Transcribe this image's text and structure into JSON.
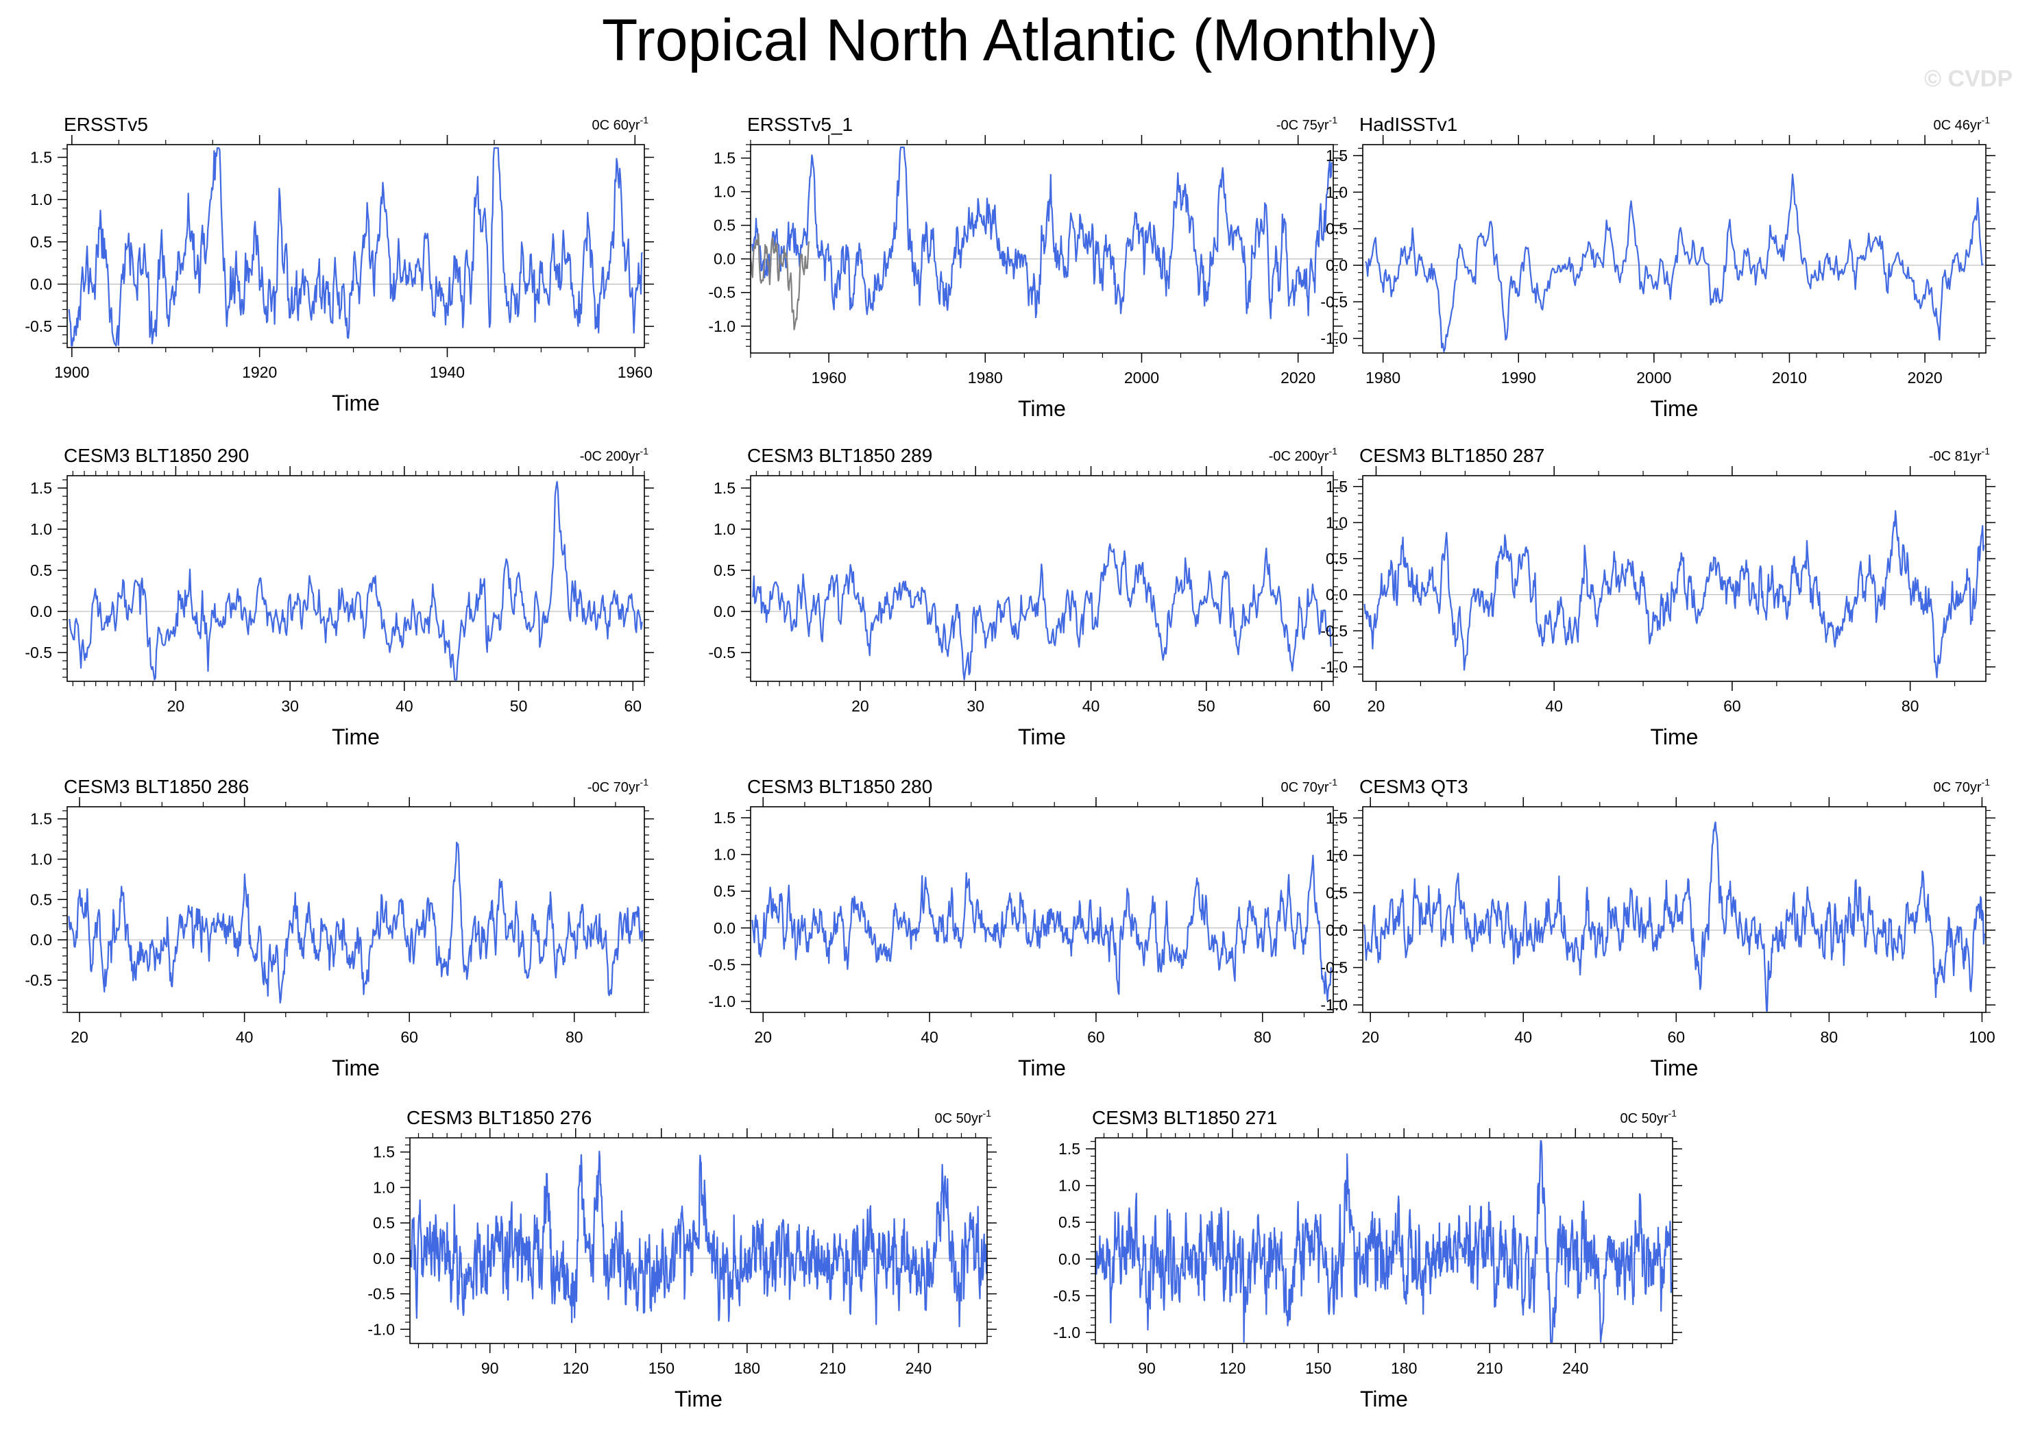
{
  "figure": {
    "title": "Tropical North Atlantic (Monthly)",
    "watermark": "© CVDP",
    "line_color": "#4169e1",
    "secondary_line_color": "#808080",
    "zero_line_color": "#b0b0b0"
  },
  "chart_data": [
    {
      "type": "line",
      "title": "ERSSTv5",
      "annotation": "0C 60yr",
      "annotation_sup": "-1",
      "xlabel": "Time",
      "xlim": [
        1899.5,
        1961
      ],
      "xticks": [
        1900,
        1920,
        1940,
        1960
      ],
      "xminor": 5,
      "ylim": [
        -0.75,
        1.65
      ],
      "yticks": [
        -0.5,
        0.0,
        0.5,
        1.0,
        1.5
      ],
      "grid": false,
      "series": [
        {
          "name": "ERSSTv5",
          "n": 732,
          "seed": 11,
          "amp": 0.34,
          "mean": 0.02,
          "events": [
            [
              1903.0,
              0.65
            ],
            [
              1915.7,
              0.75
            ],
            [
              1931.5,
              0.6
            ],
            [
              1941.0,
              0.55
            ],
            [
              1944.0,
              0.6
            ],
            [
              1945.3,
              1.25
            ],
            [
              1958.2,
              0.75
            ],
            [
              1904.5,
              -0.55
            ],
            [
              1923.5,
              -0.5
            ],
            [
              1952.0,
              -0.45
            ],
            [
              1956.0,
              -0.5
            ]
          ]
        }
      ]
    },
    {
      "type": "line",
      "title": "ERSSTv5_1",
      "annotation": "-0C 75yr",
      "annotation_sup": "-1",
      "xlabel": "Time",
      "xlim": [
        1950,
        2024.5
      ],
      "xticks": [
        1960,
        1980,
        2000,
        2020
      ],
      "xminor": 5,
      "ylim": [
        -1.4,
        1.7
      ],
      "yticks": [
        -1.0,
        -0.5,
        0.0,
        0.5,
        1.0,
        1.5
      ],
      "grid": false,
      "series": [
        {
          "name": "ERSSTv5_1",
          "n": 894,
          "seed": 23,
          "amp": 0.32,
          "mean": 0.0,
          "events": [
            [
              1958.0,
              0.85
            ],
            [
              1969.5,
              0.9
            ],
            [
              1974.0,
              -1.0
            ],
            [
              1988.0,
              0.65
            ],
            [
              2005.5,
              0.75
            ],
            [
              2010.2,
              1.05
            ],
            [
              2019.0,
              -0.9
            ],
            [
              2024.0,
              0.95
            ]
          ]
        },
        {
          "name": "ERSSTv5_1 (alt)",
          "n": 90,
          "seed": 29,
          "amp": 0.28,
          "mean": -0.08,
          "xrange": [
            1950,
            1957.5
          ],
          "color": "secondary",
          "events": []
        }
      ]
    },
    {
      "type": "line",
      "title": "HadISSTv1",
      "annotation": "0C 46yr",
      "annotation_sup": "-1",
      "xlabel": "Time",
      "xlim": [
        1978.5,
        2024.5
      ],
      "xticks": [
        1980,
        1990,
        2000,
        2010,
        2020
      ],
      "xminor": 2,
      "ylim": [
        -1.2,
        1.65
      ],
      "yticks": [
        -1.0,
        -0.5,
        0.0,
        0.5,
        1.0,
        1.5
      ],
      "grid": false,
      "series": [
        {
          "name": "HadISSTv1",
          "n": 552,
          "seed": 37,
          "amp": 0.22,
          "mean": 0.0,
          "events": [
            [
              1979.5,
              0.35
            ],
            [
              1988.0,
              0.45
            ],
            [
              1998.3,
              0.7
            ],
            [
              2005.5,
              0.6
            ],
            [
              2010.2,
              1.05
            ],
            [
              1984.5,
              -0.55
            ],
            [
              1989.0,
              -0.75
            ],
            [
              2021.0,
              -0.9
            ],
            [
              2023.8,
              0.8
            ]
          ]
        }
      ]
    },
    {
      "type": "line",
      "title": "CESM3 BLT1850 290",
      "annotation": "-0C 200yr",
      "annotation_sup": "-1",
      "xlabel": "Time",
      "xlim": [
        10.5,
        61
      ],
      "xticks": [
        20,
        30,
        40,
        50,
        60
      ],
      "xminor": 1,
      "ylim": [
        -0.85,
        1.65
      ],
      "yticks": [
        -0.5,
        0.0,
        0.5,
        1.0,
        1.5
      ],
      "grid": false,
      "series": [
        {
          "name": "290",
          "n": 600,
          "seed": 41,
          "amp": 0.25,
          "mean": 0.0,
          "events": [
            [
              53.3,
              1.15
            ],
            [
              54.0,
              0.6
            ],
            [
              24.5,
              0.4
            ],
            [
              51.5,
              0.45
            ],
            [
              44.5,
              -0.55
            ],
            [
              18.0,
              -0.5
            ],
            [
              47.5,
              -0.5
            ]
          ]
        }
      ]
    },
    {
      "type": "line",
      "title": "CESM3 BLT1850 289",
      "annotation": "-0C 200yr",
      "annotation_sup": "-1",
      "xlabel": "Time",
      "xlim": [
        10.5,
        61
      ],
      "xticks": [
        20,
        30,
        40,
        50,
        60
      ],
      "xminor": 1,
      "ylim": [
        -0.85,
        1.65
      ],
      "yticks": [
        -0.5,
        0.0,
        0.5,
        1.0,
        1.5
      ],
      "grid": false,
      "series": [
        {
          "name": "289",
          "n": 600,
          "seed": 53,
          "amp": 0.24,
          "mean": 0.0,
          "events": [
            [
              44.3,
              0.7
            ],
            [
              28.5,
              0.5
            ],
            [
              59.0,
              0.5
            ],
            [
              42.0,
              0.45
            ],
            [
              29.5,
              -0.5
            ],
            [
              57.5,
              -0.5
            ]
          ]
        }
      ]
    },
    {
      "type": "line",
      "title": "CESM3 BLT1850 287",
      "annotation": "-0C 81yr",
      "annotation_sup": "-1",
      "xlabel": "Time",
      "xlim": [
        18.5,
        88.5
      ],
      "xticks": [
        20,
        40,
        60,
        80
      ],
      "xminor": 5,
      "ylim": [
        -1.2,
        1.65
      ],
      "yticks": [
        -1.0,
        -0.5,
        0.0,
        0.5,
        1.0,
        1.5
      ],
      "grid": false,
      "series": [
        {
          "name": "287",
          "n": 840,
          "seed": 67,
          "amp": 0.26,
          "mean": 0.0,
          "events": [
            [
              27.8,
              0.8
            ],
            [
              61.5,
              0.8
            ],
            [
              78.3,
              0.85
            ],
            [
              88.0,
              0.65
            ],
            [
              34.5,
              0.5
            ],
            [
              83.0,
              -0.85
            ],
            [
              30.0,
              -0.5
            ],
            [
              45.0,
              -0.5
            ]
          ]
        }
      ]
    },
    {
      "type": "line",
      "title": "CESM3 BLT1850 286",
      "annotation": "-0C 70yr",
      "annotation_sup": "-1",
      "xlabel": "Time",
      "xlim": [
        18.5,
        88.5
      ],
      "xticks": [
        20,
        40,
        60,
        80
      ],
      "xminor": 5,
      "ylim": [
        -0.9,
        1.65
      ],
      "yticks": [
        -0.5,
        0.0,
        0.5,
        1.0,
        1.5
      ],
      "grid": false,
      "series": [
        {
          "name": "286",
          "n": 840,
          "seed": 79,
          "amp": 0.26,
          "mean": 0.0,
          "events": [
            [
              40.0,
              1.0
            ],
            [
              65.8,
              0.95
            ],
            [
              23.0,
              -0.55
            ],
            [
              44.5,
              -0.55
            ],
            [
              55.0,
              -0.4
            ],
            [
              71.0,
              0.5
            ]
          ]
        }
      ]
    },
    {
      "type": "line",
      "title": "CESM3 BLT1850 280",
      "annotation": "0C 70yr",
      "annotation_sup": "-1",
      "xlabel": "Time",
      "xlim": [
        18.5,
        88.5
      ],
      "xticks": [
        20,
        40,
        60,
        80
      ],
      "xminor": 5,
      "ylim": [
        -1.15,
        1.65
      ],
      "yticks": [
        -1.0,
        -0.5,
        0.0,
        0.5,
        1.0,
        1.5
      ],
      "grid": false,
      "series": [
        {
          "name": "280",
          "n": 840,
          "seed": 83,
          "amp": 0.27,
          "mean": 0.0,
          "events": [
            [
              30.0,
              -0.8
            ],
            [
              44.5,
              0.7
            ],
            [
              62.5,
              -0.75
            ],
            [
              67.0,
              0.55
            ],
            [
              86.0,
              0.5
            ]
          ]
        }
      ]
    },
    {
      "type": "line",
      "title": "CESM3 QT3",
      "annotation": "0C 70yr",
      "annotation_sup": "-1",
      "xlabel": "Time",
      "xlim": [
        19,
        100.5
      ],
      "xticks": [
        20,
        40,
        60,
        80,
        100
      ],
      "xminor": 5,
      "ylim": [
        -1.1,
        1.65
      ],
      "yticks": [
        -1.0,
        -0.5,
        0.0,
        0.5,
        1.0,
        1.5
      ],
      "grid": false,
      "series": [
        {
          "name": "QT3",
          "n": 972,
          "seed": 97,
          "amp": 0.28,
          "mean": 0.0,
          "events": [
            [
              26.0,
              0.65
            ],
            [
              65.0,
              1.0
            ],
            [
              72.0,
              -0.6
            ],
            [
              75.0,
              0.6
            ],
            [
              85.5,
              0.65
            ],
            [
              99.5,
              0.6
            ],
            [
              94.0,
              -0.55
            ]
          ]
        }
      ]
    },
    {
      "type": "line",
      "title": "CESM3 BLT1850 276",
      "annotation": "0C 50yr",
      "annotation_sup": "-1",
      "xlabel": "Time",
      "xlim": [
        62,
        264
      ],
      "xticks": [
        90,
        120,
        150,
        180,
        210,
        240
      ],
      "xminor": 5,
      "ylim": [
        -1.2,
        1.7
      ],
      "yticks": [
        -1.0,
        -0.5,
        0.0,
        0.5,
        1.0,
        1.5
      ],
      "grid": false,
      "series": [
        {
          "name": "276",
          "n": 1212,
          "seed": 101,
          "amp": 0.3,
          "mean": 0.02,
          "rho": 0.55,
          "events": [
            [
              110.0,
              1.05
            ],
            [
              121.5,
              1.3
            ],
            [
              128.0,
              0.9
            ],
            [
              164.0,
              0.95
            ],
            [
              120.0,
              -0.9
            ],
            [
              249.0,
              0.8
            ],
            [
              254.0,
              -0.85
            ]
          ]
        }
      ]
    },
    {
      "type": "line",
      "title": "CESM3 BLT1850 271",
      "annotation": "0C 50yr",
      "annotation_sup": "-1",
      "xlabel": "Time",
      "xlim": [
        72,
        274
      ],
      "xticks": [
        90,
        120,
        150,
        180,
        210,
        240
      ],
      "xminor": 5,
      "ylim": [
        -1.15,
        1.65
      ],
      "yticks": [
        -1.0,
        -0.5,
        0.0,
        0.5,
        1.0,
        1.5
      ],
      "grid": false,
      "series": [
        {
          "name": "271",
          "n": 1212,
          "seed": 113,
          "amp": 0.3,
          "mean": 0.0,
          "rho": 0.55,
          "events": [
            [
              228.0,
              1.3
            ],
            [
              160.0,
              1.0
            ],
            [
              139.5,
              -0.85
            ],
            [
              232.0,
              -0.85
            ],
            [
              249.0,
              -0.7
            ]
          ]
        }
      ]
    }
  ]
}
